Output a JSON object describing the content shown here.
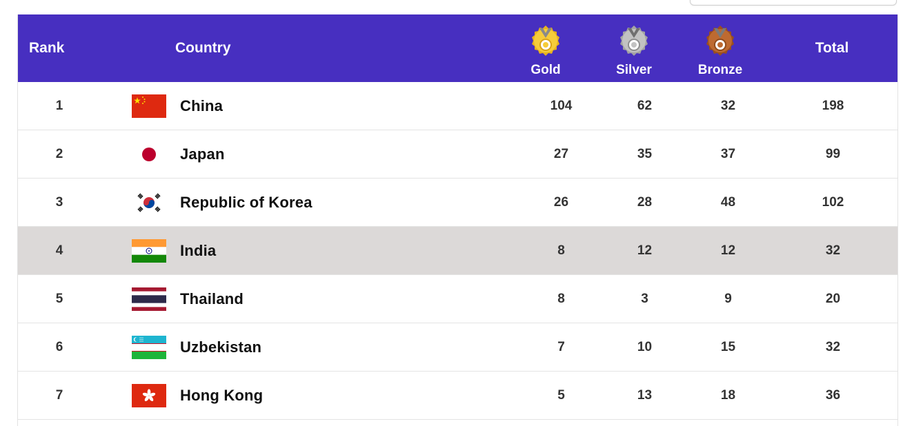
{
  "header": {
    "rank": "Rank",
    "country": "Country",
    "gold": "Gold",
    "silver": "Silver",
    "bronze": "Bronze",
    "total": "Total"
  },
  "colors": {
    "header_bg": "#472fc0",
    "highlight_row": "#dcd9d8",
    "gold": "#f2c230",
    "silver": "#b9b9b9",
    "bronze": "#b3602a"
  },
  "rows": [
    {
      "rank": "1",
      "country": "China",
      "flag": "china-flag-icon",
      "gold": "104",
      "silver": "62",
      "bronze": "32",
      "total": "198"
    },
    {
      "rank": "2",
      "country": "Japan",
      "flag": "japan-flag-icon",
      "gold": "27",
      "silver": "35",
      "bronze": "37",
      "total": "99"
    },
    {
      "rank": "3",
      "country": "Republic of Korea",
      "flag": "korea-flag-icon",
      "gold": "26",
      "silver": "28",
      "bronze": "48",
      "total": "102"
    },
    {
      "rank": "4",
      "country": "India",
      "flag": "india-flag-icon",
      "gold": "8",
      "silver": "12",
      "bronze": "12",
      "total": "32",
      "highlighted": true
    },
    {
      "rank": "5",
      "country": "Thailand",
      "flag": "thailand-flag-icon",
      "gold": "8",
      "silver": "3",
      "bronze": "9",
      "total": "20"
    },
    {
      "rank": "6",
      "country": "Uzbekistan",
      "flag": "uzbekistan-flag-icon",
      "gold": "7",
      "silver": "10",
      "bronze": "15",
      "total": "32"
    },
    {
      "rank": "7",
      "country": "Hong Kong",
      "flag": "hong-kong-flag-icon",
      "gold": "5",
      "silver": "13",
      "bronze": "18",
      "total": "36"
    }
  ]
}
